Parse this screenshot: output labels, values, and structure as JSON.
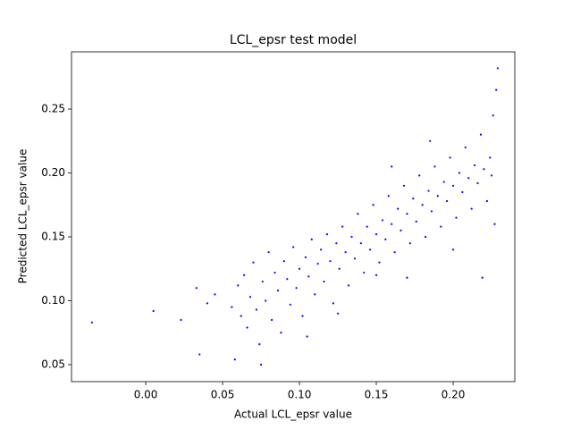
{
  "chart_data": {
    "type": "scatter",
    "title": "LCL_epsr test model",
    "x_label": "Actual LCL_epsr value",
    "y_label": "Predicted LCL_epsr value",
    "color": "#0000ff",
    "x": [
      -0.035,
      0.005,
      0.023,
      0.033,
      0.035,
      0.04,
      0.045,
      0.056,
      0.058,
      0.06,
      0.062,
      0.064,
      0.066,
      0.068,
      0.07,
      0.072,
      0.074,
      0.076,
      0.078,
      0.08,
      0.082,
      0.084,
      0.086,
      0.088,
      0.09,
      0.092,
      0.094,
      0.096,
      0.098,
      0.1,
      0.102,
      0.104,
      0.106,
      0.108,
      0.11,
      0.112,
      0.114,
      0.116,
      0.118,
      0.12,
      0.122,
      0.124,
      0.126,
      0.128,
      0.13,
      0.132,
      0.134,
      0.136,
      0.138,
      0.14,
      0.142,
      0.144,
      0.146,
      0.148,
      0.15,
      0.152,
      0.154,
      0.156,
      0.158,
      0.16,
      0.162,
      0.164,
      0.166,
      0.168,
      0.17,
      0.172,
      0.174,
      0.176,
      0.178,
      0.18,
      0.182,
      0.184,
      0.186,
      0.188,
      0.19,
      0.192,
      0.194,
      0.196,
      0.198,
      0.2,
      0.202,
      0.204,
      0.206,
      0.208,
      0.21,
      0.212,
      0.214,
      0.216,
      0.218,
      0.22,
      0.222,
      0.224,
      0.226,
      0.228,
      0.229,
      0.227,
      0.225,
      0.219,
      0.2,
      0.17,
      0.185,
      0.16,
      0.125,
      0.105,
      0.075,
      0.15
    ],
    "y": [
      0.083,
      0.092,
      0.085,
      0.11,
      0.058,
      0.098,
      0.105,
      0.095,
      0.054,
      0.112,
      0.088,
      0.12,
      0.079,
      0.103,
      0.13,
      0.093,
      0.066,
      0.115,
      0.1,
      0.138,
      0.085,
      0.122,
      0.108,
      0.075,
      0.131,
      0.117,
      0.097,
      0.142,
      0.11,
      0.125,
      0.088,
      0.134,
      0.119,
      0.148,
      0.105,
      0.129,
      0.14,
      0.115,
      0.152,
      0.131,
      0.098,
      0.145,
      0.125,
      0.158,
      0.138,
      0.112,
      0.15,
      0.133,
      0.168,
      0.145,
      0.122,
      0.158,
      0.14,
      0.175,
      0.152,
      0.13,
      0.163,
      0.148,
      0.182,
      0.16,
      0.138,
      0.172,
      0.155,
      0.19,
      0.168,
      0.145,
      0.18,
      0.162,
      0.198,
      0.175,
      0.15,
      0.186,
      0.17,
      0.205,
      0.182,
      0.158,
      0.193,
      0.178,
      0.212,
      0.19,
      0.165,
      0.2,
      0.185,
      0.22,
      0.196,
      0.172,
      0.206,
      0.192,
      0.23,
      0.203,
      0.178,
      0.212,
      0.245,
      0.265,
      0.282,
      0.16,
      0.198,
      0.118,
      0.14,
      0.118,
      0.225,
      0.205,
      0.09,
      0.072,
      0.05,
      0.12
    ],
    "xlim": [
      -0.0483,
      0.2401
    ],
    "ylim": [
      0.0367,
      0.2948
    ],
    "xticks": [
      {
        "value": 0,
        "label": "0.00"
      },
      {
        "value": 0.05,
        "label": "0.05"
      },
      {
        "value": 0.1,
        "label": "0.10"
      },
      {
        "value": 0.15,
        "label": "0.15"
      },
      {
        "value": 0.2,
        "label": "0.20"
      }
    ],
    "yticks": [
      {
        "value": 0.05,
        "label": "0.05"
      },
      {
        "value": 0.1,
        "label": "0.10"
      },
      {
        "value": 0.15,
        "label": "0.15"
      },
      {
        "value": 0.2,
        "label": "0.20"
      },
      {
        "value": 0.25,
        "label": "0.25"
      }
    ]
  }
}
